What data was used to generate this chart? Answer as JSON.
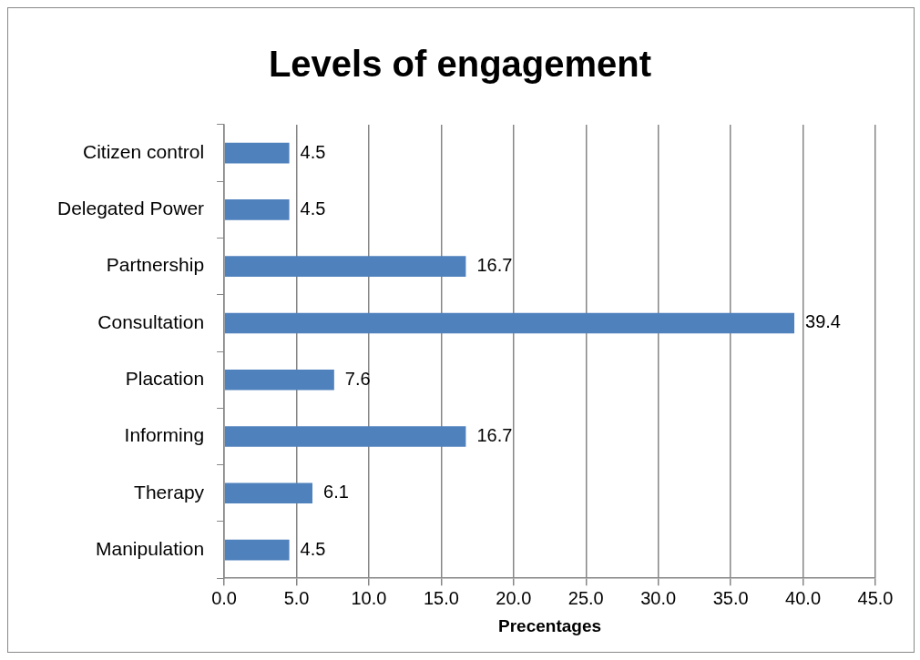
{
  "chart_data": {
    "type": "bar",
    "orientation": "horizontal",
    "title": "Levels of engagement",
    "xlabel": "Precentages",
    "categories": [
      "Citizen control",
      "Delegated Power",
      "Partnership",
      "Consultation",
      "Placation",
      "Informing",
      "Therapy",
      "Manipulation"
    ],
    "values": [
      4.5,
      4.5,
      16.7,
      39.4,
      7.6,
      16.7,
      6.1,
      4.5
    ],
    "color": "#4f81bd",
    "xlim": [
      0,
      45
    ],
    "xticks": [
      {
        "value": 0,
        "label": "0.0"
      },
      {
        "value": 5,
        "label": "5.0"
      },
      {
        "value": 10,
        "label": "10.0"
      },
      {
        "value": 15,
        "label": "15.0"
      },
      {
        "value": 20,
        "label": "20.0"
      },
      {
        "value": 25,
        "label": "25.0"
      },
      {
        "value": 30,
        "label": "30.0"
      },
      {
        "value": 35,
        "label": "35.0"
      },
      {
        "value": 40,
        "label": "40.0"
      },
      {
        "value": 45,
        "label": "45.0"
      }
    ],
    "grid": "x",
    "data_labels": true,
    "legend": false
  }
}
